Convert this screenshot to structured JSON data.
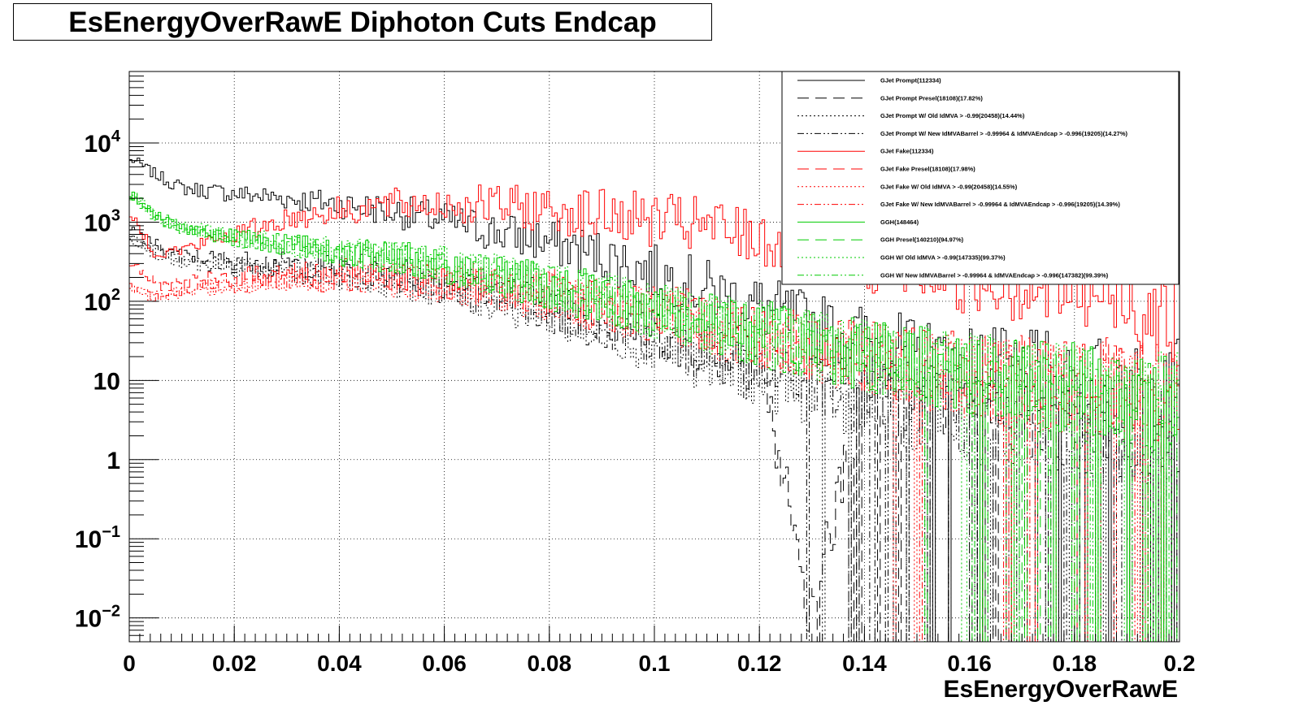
{
  "chart_data": {
    "type": "line",
    "title": "EsEnergyOverRawE Diphoton Cuts Endcap",
    "xlabel": "EsEnergyOverRawE",
    "ylabel": "",
    "xlim": [
      0,
      0.2
    ],
    "ylim": [
      0.005,
      80000
    ],
    "yscale": "log",
    "grid": true,
    "legend_position": "top-right",
    "x_ticks": [
      "0",
      "0.02",
      "0.04",
      "0.06",
      "0.08",
      "0.1",
      "0.12",
      "0.14",
      "0.16",
      "0.18",
      "0.2"
    ],
    "y_ticks": [
      {
        "base": "10",
        "exp": "−2"
      },
      {
        "base": "10",
        "exp": "−1"
      },
      {
        "base": "1",
        "exp": ""
      },
      {
        "base": "10",
        "exp": ""
      },
      {
        "base": "10",
        "exp": "2"
      },
      {
        "base": "10",
        "exp": "3"
      },
      {
        "base": "10",
        "exp": "4"
      }
    ],
    "x": [
      0.001,
      0.005,
      0.01,
      0.02,
      0.03,
      0.04,
      0.05,
      0.06,
      0.07,
      0.08,
      0.09,
      0.1,
      0.11,
      0.12,
      0.13,
      0.14,
      0.15,
      0.16,
      0.17,
      0.18,
      0.19,
      0.2
    ],
    "series": [
      {
        "name": "GJet Prompt(112334)",
        "color": "#000000",
        "dash": "solid",
        "values": [
          6000,
          4000,
          2700,
          2300,
          2000,
          1700,
          1400,
          1050,
          750,
          560,
          380,
          230,
          140,
          85,
          48,
          32,
          20,
          15,
          12,
          10,
          9,
          8
        ]
      },
      {
        "name": "GJet Prompt Presel(18108)(17.82%)",
        "color": "#000000",
        "dash": "14,8",
        "values": [
          800,
          520,
          380,
          330,
          300,
          270,
          230,
          190,
          140,
          100,
          65,
          42,
          28,
          18,
          0.01,
          10,
          6,
          4,
          3,
          3,
          2,
          2
        ]
      },
      {
        "name": "GJet Prompt W/ Old IdMVA > -0.99(20458)(14.44%)",
        "color": "#000000",
        "dash": "2,3",
        "values": [
          600,
          400,
          300,
          260,
          240,
          210,
          180,
          140,
          100,
          70,
          45,
          28,
          18,
          12,
          7,
          5,
          4,
          3,
          3,
          2,
          2,
          2
        ]
      },
      {
        "name": "GJet Prompt W/ New IdMVABarrel > -0.99964 & IdMVAEndcap > -0.996(19205)(14.27%)",
        "color": "#000000",
        "dash": "8,3,2,3,2,3",
        "values": [
          650,
          430,
          320,
          280,
          250,
          220,
          190,
          150,
          110,
          80,
          50,
          32,
          20,
          13,
          8,
          6,
          4,
          3,
          3,
          2,
          2,
          2
        ]
      },
      {
        "name": "GJet Fake(112334)",
        "color": "#ff0000",
        "dash": "solid",
        "values": [
          1100,
          400,
          450,
          700,
          1100,
          1400,
          1650,
          1700,
          1600,
          1450,
          1250,
          1050,
          850,
          650,
          500,
          380,
          300,
          230,
          180,
          140,
          110,
          60
        ]
      },
      {
        "name": "GJet Fake Presel(18108)(17.98%)",
        "color": "#ff0000",
        "dash": "14,8",
        "values": [
          300,
          160,
          170,
          200,
          230,
          230,
          210,
          190,
          160,
          130,
          100,
          75,
          55,
          40,
          28,
          20,
          15,
          12,
          10,
          9,
          8,
          7
        ]
      },
      {
        "name": "GJet Fake W/ Old IdMVA > -0.99(20458)(14.55%)",
        "color": "#ff0000",
        "dash": "2,3",
        "values": [
          140,
          110,
          130,
          160,
          190,
          190,
          180,
          160,
          140,
          110,
          85,
          65,
          48,
          35,
          24,
          18,
          13,
          11,
          9,
          8,
          7,
          6
        ]
      },
      {
        "name": "GJet Fake W/ New IdMVABarrel > -0.99964 & IdMVAEndcap > -0.996(19205)(14.39%)",
        "color": "#ff0000",
        "dash": "8,3,2,3,2,3",
        "values": [
          150,
          115,
          135,
          165,
          195,
          195,
          185,
          165,
          145,
          115,
          88,
          68,
          50,
          36,
          25,
          19,
          14,
          11,
          9,
          8,
          7,
          6
        ]
      },
      {
        "name": "GGH(148464)",
        "color": "#00cc00",
        "dash": "solid",
        "values": [
          2200,
          1200,
          850,
          650,
          520,
          430,
          360,
          290,
          220,
          160,
          110,
          80,
          55,
          40,
          28,
          22,
          17,
          13,
          10,
          8,
          6,
          5
        ]
      },
      {
        "name": "GGH Presel(140210)(94.97%)",
        "color": "#00cc00",
        "dash": "14,8",
        "values": [
          2100,
          1150,
          820,
          630,
          500,
          410,
          345,
          275,
          210,
          150,
          105,
          76,
          52,
          38,
          27,
          21,
          16,
          12,
          9,
          7,
          6,
          5
        ]
      },
      {
        "name": "GGH W/ Old IdMVA > -0.99(147335)(99.37%)",
        "color": "#00cc00",
        "dash": "2,3",
        "values": [
          2150,
          1180,
          840,
          640,
          510,
          420,
          355,
          285,
          215,
          155,
          108,
          78,
          54,
          39,
          27,
          21,
          16,
          12,
          9,
          7,
          6,
          5
        ]
      },
      {
        "name": "GGH W/ New IdMVABarrel > -0.99964 & IdMVAEndcap > -0.996(147382)(99.39%)",
        "color": "#00cc00",
        "dash": "8,3,2,3,2,3",
        "values": [
          2160,
          1185,
          845,
          645,
          512,
          422,
          356,
          286,
          216,
          156,
          109,
          79,
          54,
          39,
          28,
          21,
          16,
          12,
          9,
          7,
          6,
          5
        ]
      }
    ]
  }
}
